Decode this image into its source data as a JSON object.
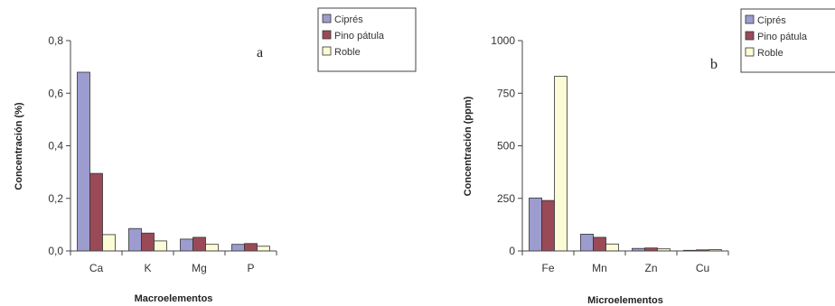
{
  "colors": {
    "Ciprés": "#9c9ccf",
    "Pino pátula": "#9a4a57",
    "Roble": "#fbfbd5"
  },
  "chart_data": [
    {
      "type": "bar",
      "panel": "a",
      "categories": [
        "Ca",
        "K",
        "Mg",
        "P"
      ],
      "series": [
        {
          "name": "Ciprés",
          "values": [
            0.68,
            0.085,
            0.045,
            0.025
          ]
        },
        {
          "name": "Pino pátula",
          "values": [
            0.295,
            0.068,
            0.052,
            0.028
          ]
        },
        {
          "name": "Roble",
          "values": [
            0.062,
            0.038,
            0.025,
            0.018
          ]
        }
      ],
      "xlabel": "Macroelementos",
      "ylabel": "Concentración (%)",
      "ylim": [
        0,
        0.8
      ],
      "yticks": [
        "0,0",
        "0,2",
        "0,4",
        "0,6",
        "0,8"
      ],
      "legend_position": "right, outside",
      "grid": false
    },
    {
      "type": "bar",
      "panel": "b",
      "categories": [
        "Fe",
        "Mn",
        "Zn",
        "Cu"
      ],
      "series": [
        {
          "name": "Ciprés",
          "values": [
            252,
            80,
            12,
            3
          ]
        },
        {
          "name": "Pino pátula",
          "values": [
            240,
            65,
            14,
            5
          ]
        },
        {
          "name": "Roble",
          "values": [
            830,
            33,
            10,
            6
          ]
        }
      ],
      "xlabel": "Microelementos",
      "ylabel": "Concentración (ppm)",
      "ylim": [
        0,
        1000
      ],
      "yticks": [
        "0",
        "250",
        "500",
        "750",
        "1000"
      ],
      "legend_position": "right, outside",
      "grid": false
    }
  ]
}
